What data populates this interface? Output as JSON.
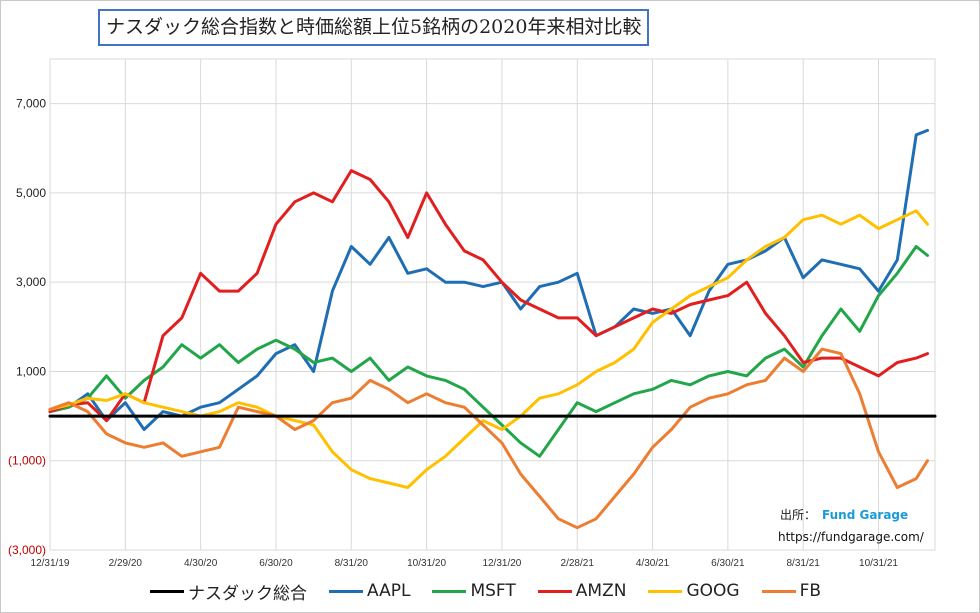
{
  "chart_data": {
    "type": "line",
    "title": "ナスダック総合指数と時価総額上位5銘柄の2020年来相対比較",
    "x_tick_labels": [
      "12/31/19",
      "2/29/20",
      "4/30/20",
      "6/30/20",
      "8/31/20",
      "10/31/20",
      "12/31/20",
      "2/28/21",
      "4/30/21",
      "6/30/21",
      "8/31/21",
      "10/31/21"
    ],
    "y_ticks": [
      {
        "value": -3000,
        "label": "(3,000)",
        "negative": true
      },
      {
        "value": -1000,
        "label": "(1,000)",
        "negative": true
      },
      {
        "value": 1000,
        "label": "1,000",
        "negative": false
      },
      {
        "value": 3000,
        "label": "3,000",
        "negative": false
      },
      {
        "value": 5000,
        "label": "5,000",
        "negative": false
      },
      {
        "value": 7000,
        "label": "7,000",
        "negative": false
      }
    ],
    "ylim": [
      -3000,
      8000
    ],
    "x_range": [
      0,
      23.5
    ],
    "grid": true,
    "legend_position": "bottom",
    "series": [
      {
        "name": "ナスダック総合",
        "color": "#000000",
        "width": 3,
        "x": [
          0,
          23.5
        ],
        "y": [
          0,
          0
        ]
      },
      {
        "name": "AAPL",
        "color": "#1f6eb4",
        "width": 3,
        "x": [
          0,
          0.5,
          1,
          1.5,
          2,
          2.5,
          3,
          3.5,
          4,
          4.5,
          5,
          5.5,
          6,
          6.5,
          7,
          7.5,
          8,
          8.5,
          9,
          9.5,
          10,
          10.5,
          11,
          11.5,
          12,
          12.5,
          13,
          13.5,
          14,
          14.5,
          15,
          15.5,
          16,
          16.5,
          17,
          17.5,
          18,
          18.5,
          19,
          19.5,
          20,
          20.5,
          21,
          21.5,
          22,
          22.5,
          23,
          23.3
        ],
        "y": [
          100,
          200,
          500,
          -100,
          300,
          -300,
          100,
          0,
          200,
          300,
          600,
          900,
          1400,
          1600,
          1000,
          2800,
          3800,
          3400,
          4000,
          3200,
          3300,
          3000,
          3000,
          2900,
          3000,
          2400,
          2900,
          3000,
          3200,
          1800,
          2000,
          2400,
          2300,
          2400,
          1800,
          2800,
          3400,
          3500,
          3700,
          4000,
          3100,
          3500,
          3400,
          3300,
          2800,
          3500,
          6300,
          6400
        ]
      },
      {
        "name": "MSFT",
        "color": "#22a64a",
        "width": 3,
        "x": [
          0,
          0.5,
          1,
          1.5,
          2,
          2.5,
          3,
          3.5,
          4,
          4.5,
          5,
          5.5,
          6,
          6.5,
          7,
          7.5,
          8,
          8.5,
          9,
          9.5,
          10,
          10.5,
          11,
          11.5,
          12,
          12.5,
          13,
          13.5,
          14,
          14.5,
          15,
          15.5,
          16,
          16.5,
          17,
          17.5,
          18,
          18.5,
          19,
          19.5,
          20,
          20.5,
          21,
          21.5,
          22,
          22.5,
          23,
          23.3
        ],
        "y": [
          100,
          200,
          400,
          900,
          400,
          800,
          1100,
          1600,
          1300,
          1600,
          1200,
          1500,
          1700,
          1500,
          1200,
          1300,
          1000,
          1300,
          800,
          1100,
          900,
          800,
          600,
          200,
          -200,
          -600,
          -900,
          -300,
          300,
          100,
          300,
          500,
          600,
          800,
          700,
          900,
          1000,
          900,
          1300,
          1500,
          1100,
          1800,
          2400,
          1900,
          2700,
          3200,
          3800,
          3600
        ]
      },
      {
        "name": "AMZN",
        "color": "#e21f1f",
        "width": 3,
        "x": [
          0,
          0.5,
          1,
          1.5,
          2,
          2.5,
          3,
          3.5,
          4,
          4.5,
          5,
          5.5,
          6,
          6.5,
          7,
          7.5,
          8,
          8.5,
          9,
          9.5,
          10,
          10.5,
          11,
          11.5,
          12,
          12.5,
          13,
          13.5,
          14,
          14.5,
          15,
          15.5,
          16,
          16.5,
          17,
          17.5,
          18,
          18.5,
          19,
          19.5,
          20,
          20.5,
          21,
          21.5,
          22,
          22.5,
          23,
          23.3
        ],
        "y": [
          100,
          250,
          300,
          -100,
          500,
          300,
          1800,
          2200,
          3200,
          2800,
          2800,
          3200,
          4300,
          4800,
          5000,
          4800,
          5500,
          5300,
          4800,
          4000,
          5000,
          4300,
          3700,
          3500,
          3000,
          2600,
          2400,
          2200,
          2200,
          1800,
          2000,
          2200,
          2400,
          2300,
          2500,
          2600,
          2700,
          3000,
          2300,
          1800,
          1200,
          1300,
          1300,
          1100,
          900,
          1200,
          1300,
          1400
        ]
      },
      {
        "name": "GOOG",
        "color": "#ffc000",
        "width": 3,
        "x": [
          0,
          0.5,
          1,
          1.5,
          2,
          2.5,
          3,
          3.5,
          4,
          4.5,
          5,
          5.5,
          6,
          6.5,
          7,
          7.5,
          8,
          8.5,
          9,
          9.5,
          10,
          10.5,
          11,
          11.5,
          12,
          12.5,
          13,
          13.5,
          14,
          14.5,
          15,
          15.5,
          16,
          16.5,
          17,
          17.5,
          18,
          18.5,
          19,
          19.5,
          20,
          20.5,
          21,
          21.5,
          22,
          22.5,
          23,
          23.3
        ],
        "y": [
          150,
          250,
          400,
          350,
          500,
          300,
          200,
          100,
          0,
          100,
          300,
          200,
          0,
          -100,
          -200,
          -800,
          -1200,
          -1400,
          -1500,
          -1600,
          -1200,
          -900,
          -500,
          -100,
          -300,
          0,
          400,
          500,
          700,
          1000,
          1200,
          1500,
          2100,
          2400,
          2700,
          2900,
          3100,
          3500,
          3800,
          4000,
          4400,
          4500,
          4300,
          4500,
          4200,
          4400,
          4600,
          4300
        ]
      },
      {
        "name": "FB",
        "color": "#ed7d31",
        "width": 3,
        "x": [
          0,
          0.5,
          1,
          1.5,
          2,
          2.5,
          3,
          3.5,
          4,
          4.5,
          5,
          5.5,
          6,
          6.5,
          7,
          7.5,
          8,
          8.5,
          9,
          9.5,
          10,
          10.5,
          11,
          11.5,
          12,
          12.5,
          13,
          13.5,
          14,
          14.5,
          15,
          15.5,
          16,
          16.5,
          17,
          17.5,
          18,
          18.5,
          19,
          19.5,
          20,
          20.5,
          21,
          21.5,
          22,
          22.5,
          23,
          23.3
        ],
        "y": [
          150,
          300,
          100,
          -400,
          -600,
          -700,
          -600,
          -900,
          -800,
          -700,
          200,
          100,
          0,
          -300,
          -100,
          300,
          400,
          800,
          600,
          300,
          500,
          300,
          200,
          -200,
          -600,
          -1300,
          -1800,
          -2300,
          -2500,
          -2300,
          -1800,
          -1300,
          -700,
          -300,
          200,
          400,
          500,
          700,
          800,
          1300,
          1000,
          1500,
          1400,
          500,
          -800,
          -1600,
          -1400,
          -1000
        ]
      }
    ]
  },
  "legend_items": [
    "ナスダック総合",
    "AAPL",
    "MSFT",
    "AMZN",
    "GOOG",
    "FB"
  ],
  "source": {
    "label": "出所：",
    "brand": "Fund Garage",
    "url": "https://fundgarage.com/"
  },
  "colors": {
    "negative_tick": "#c00000",
    "grid": "#d9d9d9"
  }
}
